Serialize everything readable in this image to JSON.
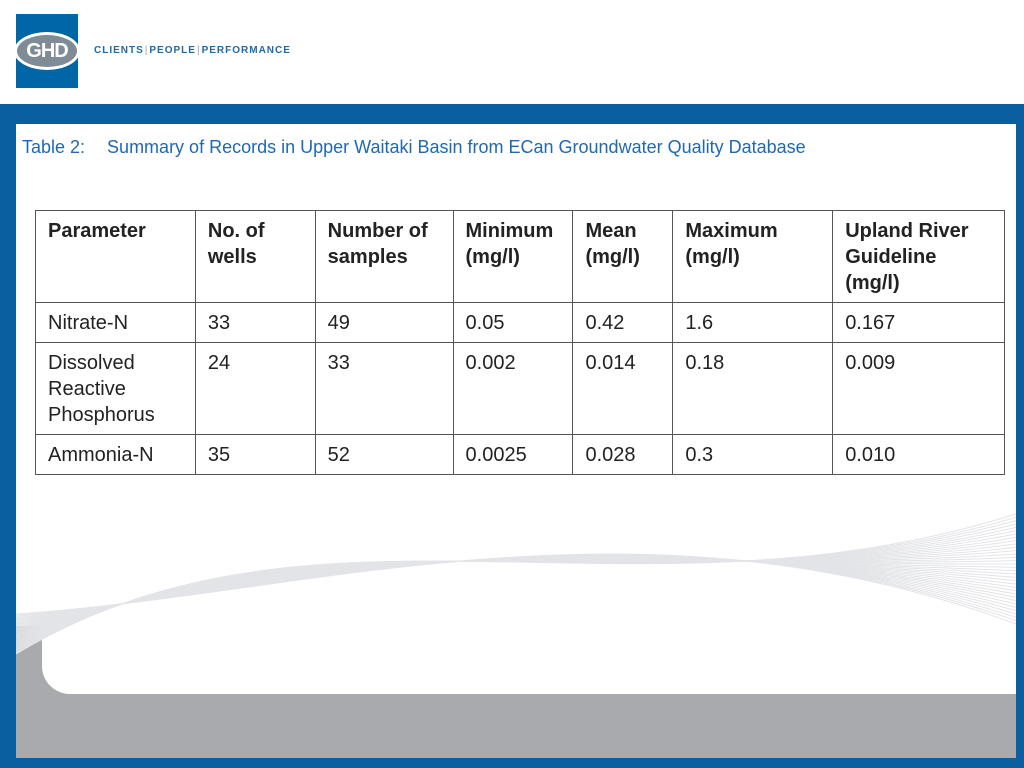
{
  "header": {
    "logo_text": "GHD",
    "tagline": [
      "CLIENTS",
      "PEOPLE",
      "PERFORMANCE"
    ]
  },
  "slide": {
    "title_number": "Table 2:",
    "title_text": "Summary of Records in Upper Waitaki Basin from ECan Groundwater Quality Database"
  },
  "table": {
    "headers": [
      [
        "Parameter"
      ],
      [
        "No. of",
        "wells"
      ],
      [
        "Number of",
        "samples"
      ],
      [
        "Minimum",
        "(mg/l)"
      ],
      [
        "Mean",
        "(mg/l)"
      ],
      [
        "Maximum",
        "(mg/l)"
      ],
      [
        "Upland River",
        "Guideline",
        "(mg/l)"
      ]
    ],
    "rows": [
      [
        [
          "Nitrate-N"
        ],
        [
          "33"
        ],
        [
          "49"
        ],
        [
          "0.05"
        ],
        [
          "0.42"
        ],
        [
          "1.6"
        ],
        [
          "0.167"
        ]
      ],
      [
        [
          "Dissolved",
          "Reactive",
          "Phosphorus"
        ],
        [
          "24"
        ],
        [
          "33"
        ],
        [
          "0.002"
        ],
        [
          "0.014"
        ],
        [
          "0.18"
        ],
        [
          "0.009"
        ]
      ],
      [
        [
          "Ammonia-N"
        ],
        [
          "35"
        ],
        [
          "52"
        ],
        [
          "0.0025"
        ],
        [
          "0.028"
        ],
        [
          "0.3"
        ],
        [
          "0.010"
        ]
      ]
    ]
  },
  "colors": {
    "brand_blue": "#0a5fa0",
    "title_blue": "#1f69b3",
    "footer_gray": "#a9aaad"
  }
}
